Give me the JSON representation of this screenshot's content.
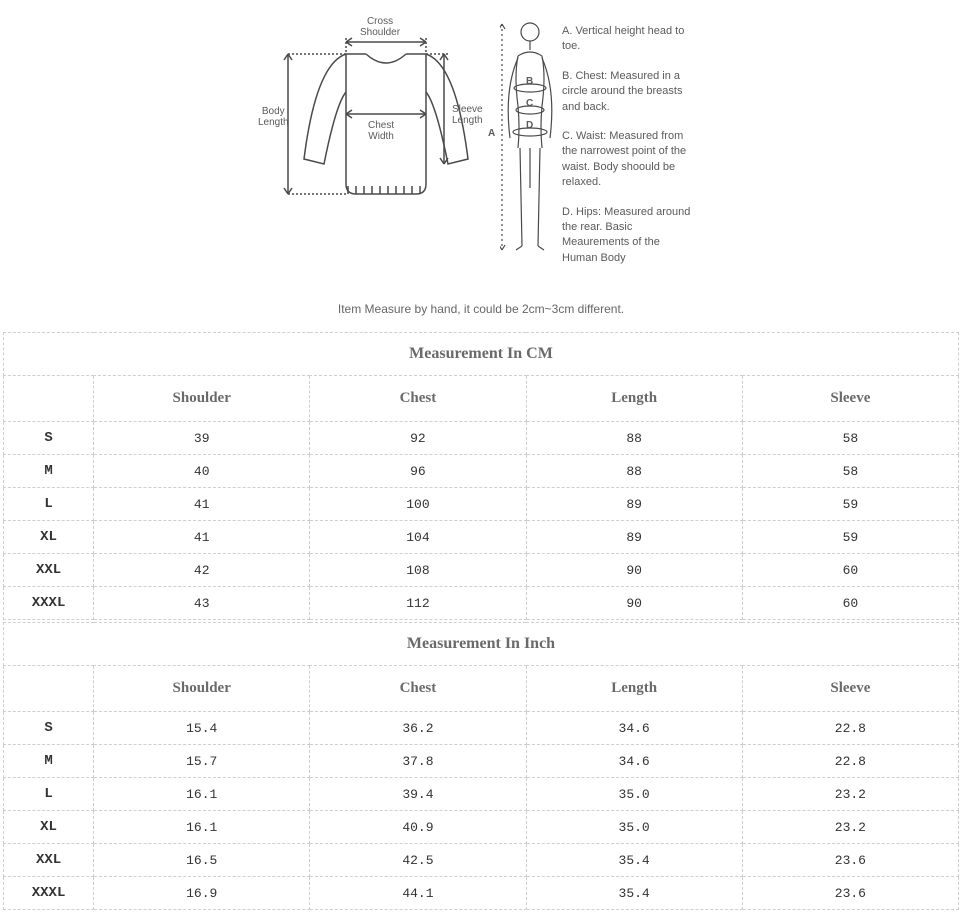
{
  "diagram": {
    "garment_labels": {
      "cross_shoulder": "Cross\nShoulder",
      "body_length": "Body\nLength",
      "chest_width": "Chest\nWidth",
      "sleeve_length": "Sleeve\nLength"
    },
    "body_letters": {
      "a": "A",
      "b": "B",
      "c": "C",
      "d": "D"
    },
    "legend": {
      "a": "A. Vertical height head to toe.",
      "b": "B. Chest: Measured in a circle around the breasts and back.",
      "c": "C. Waist: Measured from the narrowest point of the waist. Body shoould be relaxed.",
      "d": "D. Hips: Measured around the rear. Basic Meaurements of the Human Body"
    },
    "colors": {
      "stroke": "#4a4a4a",
      "text": "#5a5a5a",
      "background": "#ffffff"
    }
  },
  "caption": "Item Measure by hand, it could be 2cm~3cm different.",
  "tables": {
    "cm": {
      "title": "Measurement In CM",
      "columns": [
        "Shoulder",
        "Chest",
        "Length",
        "Sleeve"
      ],
      "rows": [
        {
          "size": "S",
          "values": [
            "39",
            "92",
            "88",
            "58"
          ]
        },
        {
          "size": "M",
          "values": [
            "40",
            "96",
            "88",
            "58"
          ]
        },
        {
          "size": "L",
          "values": [
            "41",
            "100",
            "89",
            "59"
          ]
        },
        {
          "size": "XL",
          "values": [
            "41",
            "104",
            "89",
            "59"
          ]
        },
        {
          "size": "XXL",
          "values": [
            "42",
            "108",
            "90",
            "60"
          ]
        },
        {
          "size": "XXXL",
          "values": [
            "43",
            "112",
            "90",
            "60"
          ]
        }
      ]
    },
    "inch": {
      "title": "Measurement In Inch",
      "columns": [
        "Shoulder",
        "Chest",
        "Length",
        "Sleeve"
      ],
      "rows": [
        {
          "size": "S",
          "values": [
            "15.4",
            "36.2",
            "34.6",
            "22.8"
          ]
        },
        {
          "size": "M",
          "values": [
            "15.7",
            "37.8",
            "34.6",
            "22.8"
          ]
        },
        {
          "size": "L",
          "values": [
            "16.1",
            "39.4",
            "35.0",
            "23.2"
          ]
        },
        {
          "size": "XL",
          "values": [
            "16.1",
            "40.9",
            "35.0",
            "23.2"
          ]
        },
        {
          "size": "XXL",
          "values": [
            "16.5",
            "42.5",
            "35.4",
            "23.6"
          ]
        },
        {
          "size": "XXXL",
          "values": [
            "16.9",
            "44.1",
            "35.4",
            "23.6"
          ]
        }
      ]
    },
    "style": {
      "border_color": "#cfcfcf",
      "border_style": "dashed",
      "header_font": "Times New Roman",
      "value_font": "Courier New",
      "header_color": "#6a6a6a",
      "value_color": "#333333"
    }
  }
}
